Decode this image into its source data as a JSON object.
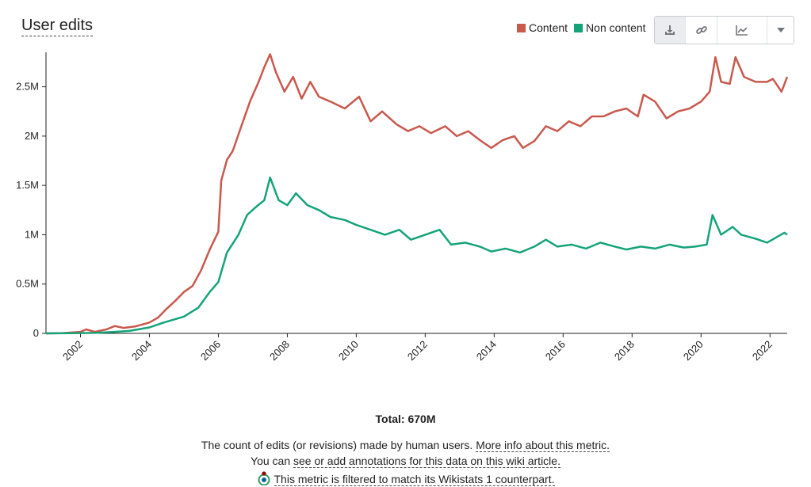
{
  "metric": {
    "title": "User edits",
    "total_label": "Total: 670M",
    "description_text": "The count of edits (or revisions) made by human users.",
    "description_link": "More info about this metric.",
    "annotation_prefix": "You can",
    "annotation_link": "see or add annotations for this data on this wiki article.",
    "filter_note": "This metric is filtered to match its Wikistats 1 counterpart."
  },
  "toolbar": {
    "buttons": [
      "download-icon",
      "link-icon",
      "line-chart-icon",
      "dropdown-caret-icon"
    ]
  },
  "colors": {
    "content": "#c9584d",
    "non_content": "#15a37a"
  },
  "chart_data": {
    "type": "line",
    "title": "User edits",
    "legend_position": "top-right",
    "grid": false,
    "xlim": [
      "2001-01",
      "2022-07"
    ],
    "ylim": [
      0,
      2850000
    ],
    "yticks": [
      0,
      500000,
      1000000,
      1500000,
      2000000,
      2500000
    ],
    "ytick_labels": [
      "0",
      "0.5M",
      "1M",
      "1.5M",
      "2M",
      "2.5M"
    ],
    "xtick_labels": [
      "2002",
      "2004",
      "2006",
      "2008",
      "2010",
      "2012",
      "2014",
      "2016",
      "2018",
      "2020",
      "2022"
    ],
    "series": [
      {
        "name": "Content",
        "color": "#c9584d",
        "points": [
          [
            "2001-01",
            0
          ],
          [
            "2001-07",
            3000
          ],
          [
            "2002-01",
            15000
          ],
          [
            "2002-03",
            40000
          ],
          [
            "2002-06",
            15000
          ],
          [
            "2002-10",
            40000
          ],
          [
            "2003-01",
            75000
          ],
          [
            "2003-04",
            55000
          ],
          [
            "2003-08",
            70000
          ],
          [
            "2004-01",
            110000
          ],
          [
            "2004-04",
            160000
          ],
          [
            "2004-07",
            250000
          ],
          [
            "2004-10",
            330000
          ],
          [
            "2005-01",
            420000
          ],
          [
            "2005-04",
            480000
          ],
          [
            "2005-07",
            640000
          ],
          [
            "2005-10",
            850000
          ],
          [
            "2006-01",
            1030000
          ],
          [
            "2006-02",
            1550000
          ],
          [
            "2006-04",
            1760000
          ],
          [
            "2006-06",
            1850000
          ],
          [
            "2006-09",
            2100000
          ],
          [
            "2006-12",
            2350000
          ],
          [
            "2007-03",
            2550000
          ],
          [
            "2007-05",
            2700000
          ],
          [
            "2007-07",
            2830000
          ],
          [
            "2007-09",
            2650000
          ],
          [
            "2007-12",
            2450000
          ],
          [
            "2008-03",
            2600000
          ],
          [
            "2008-06",
            2380000
          ],
          [
            "2008-09",
            2550000
          ],
          [
            "2008-12",
            2400000
          ],
          [
            "2009-04",
            2350000
          ],
          [
            "2009-09",
            2280000
          ],
          [
            "2010-02",
            2400000
          ],
          [
            "2010-06",
            2150000
          ],
          [
            "2010-10",
            2250000
          ],
          [
            "2011-03",
            2120000
          ],
          [
            "2011-07",
            2050000
          ],
          [
            "2011-11",
            2100000
          ],
          [
            "2012-03",
            2030000
          ],
          [
            "2012-08",
            2100000
          ],
          [
            "2012-12",
            2000000
          ],
          [
            "2013-04",
            2050000
          ],
          [
            "2013-08",
            1960000
          ],
          [
            "2013-12",
            1880000
          ],
          [
            "2014-04",
            1960000
          ],
          [
            "2014-08",
            2000000
          ],
          [
            "2014-11",
            1880000
          ],
          [
            "2015-03",
            1950000
          ],
          [
            "2015-07",
            2100000
          ],
          [
            "2015-11",
            2050000
          ],
          [
            "2016-03",
            2150000
          ],
          [
            "2016-07",
            2100000
          ],
          [
            "2016-11",
            2200000
          ],
          [
            "2017-03",
            2200000
          ],
          [
            "2017-07",
            2250000
          ],
          [
            "2017-11",
            2280000
          ],
          [
            "2018-03",
            2200000
          ],
          [
            "2018-05",
            2420000
          ],
          [
            "2018-09",
            2350000
          ],
          [
            "2019-01",
            2180000
          ],
          [
            "2019-05",
            2250000
          ],
          [
            "2019-09",
            2280000
          ],
          [
            "2020-01",
            2350000
          ],
          [
            "2020-04",
            2450000
          ],
          [
            "2020-06",
            2800000
          ],
          [
            "2020-08",
            2550000
          ],
          [
            "2020-11",
            2530000
          ],
          [
            "2021-01",
            2800000
          ],
          [
            "2021-04",
            2600000
          ],
          [
            "2021-08",
            2550000
          ],
          [
            "2021-12",
            2550000
          ],
          [
            "2022-02",
            2580000
          ],
          [
            "2022-05",
            2450000
          ],
          [
            "2022-07",
            2600000
          ]
        ]
      },
      {
        "name": "Non content",
        "color": "#15a37a",
        "points": [
          [
            "2001-01",
            0
          ],
          [
            "2002-01",
            3000
          ],
          [
            "2002-06",
            5000
          ],
          [
            "2003-01",
            15000
          ],
          [
            "2003-06",
            25000
          ],
          [
            "2004-01",
            60000
          ],
          [
            "2004-06",
            110000
          ],
          [
            "2005-01",
            170000
          ],
          [
            "2005-06",
            260000
          ],
          [
            "2005-10",
            420000
          ],
          [
            "2006-01",
            520000
          ],
          [
            "2006-04",
            820000
          ],
          [
            "2006-08",
            1000000
          ],
          [
            "2006-11",
            1200000
          ],
          [
            "2007-02",
            1280000
          ],
          [
            "2007-05",
            1350000
          ],
          [
            "2007-07",
            1580000
          ],
          [
            "2007-10",
            1350000
          ],
          [
            "2008-01",
            1300000
          ],
          [
            "2008-04",
            1420000
          ],
          [
            "2008-08",
            1300000
          ],
          [
            "2008-12",
            1250000
          ],
          [
            "2009-04",
            1180000
          ],
          [
            "2009-09",
            1150000
          ],
          [
            "2010-01",
            1100000
          ],
          [
            "2010-06",
            1050000
          ],
          [
            "2010-11",
            1000000
          ],
          [
            "2011-04",
            1050000
          ],
          [
            "2011-08",
            950000
          ],
          [
            "2012-01",
            1000000
          ],
          [
            "2012-06",
            1050000
          ],
          [
            "2012-10",
            900000
          ],
          [
            "2013-03",
            920000
          ],
          [
            "2013-08",
            880000
          ],
          [
            "2013-12",
            830000
          ],
          [
            "2014-05",
            860000
          ],
          [
            "2014-10",
            820000
          ],
          [
            "2015-03",
            880000
          ],
          [
            "2015-07",
            950000
          ],
          [
            "2015-11",
            880000
          ],
          [
            "2016-04",
            900000
          ],
          [
            "2016-09",
            860000
          ],
          [
            "2017-02",
            920000
          ],
          [
            "2017-07",
            880000
          ],
          [
            "2017-11",
            850000
          ],
          [
            "2018-04",
            880000
          ],
          [
            "2018-09",
            860000
          ],
          [
            "2019-02",
            900000
          ],
          [
            "2019-07",
            870000
          ],
          [
            "2019-11",
            880000
          ],
          [
            "2020-03",
            900000
          ],
          [
            "2020-05",
            1200000
          ],
          [
            "2020-08",
            1000000
          ],
          [
            "2020-12",
            1080000
          ],
          [
            "2021-03",
            1000000
          ],
          [
            "2021-08",
            960000
          ],
          [
            "2021-12",
            920000
          ],
          [
            "2022-03",
            970000
          ],
          [
            "2022-06",
            1020000
          ],
          [
            "2022-07",
            1000000
          ]
        ]
      }
    ]
  }
}
